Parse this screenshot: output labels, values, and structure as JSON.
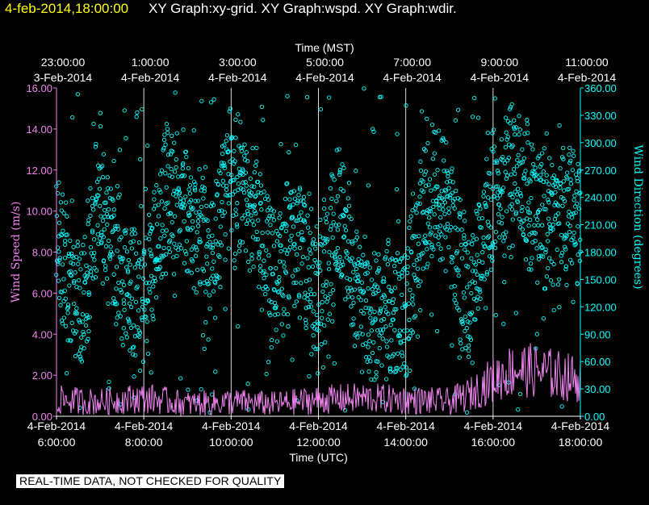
{
  "header": {
    "timestamp": "4-feb-2014,18:00:00",
    "graphs": "XY Graph:xy-grid.  XY Graph:wspd.  XY Graph:wdir."
  },
  "footer_note": "REAL-TIME DATA, NOT CHECKED FOR QUALITY",
  "colors": {
    "background": "#000000",
    "wind_speed": "#ee82ee",
    "wind_direction": "#00ffff",
    "grid": "#ffffff",
    "timestamp": "#ffff00"
  },
  "chart_data": {
    "type": "scatter",
    "title": "",
    "top_axis": {
      "label": "Time (MST)",
      "ticks": [
        {
          "time": "23:00:00",
          "date": "3-Feb-2014"
        },
        {
          "time": "1:00:00",
          "date": "4-Feb-2014"
        },
        {
          "time": "3:00:00",
          "date": "4-Feb-2014"
        },
        {
          "time": "5:00:00",
          "date": "4-Feb-2014"
        },
        {
          "time": "7:00:00",
          "date": "4-Feb-2014"
        },
        {
          "time": "9:00:00",
          "date": "4-Feb-2014"
        },
        {
          "time": "11:00:00",
          "date": "4-Feb-2014"
        }
      ]
    },
    "bottom_axis": {
      "label": "Time (UTC)",
      "ticks": [
        {
          "date": "4-Feb-2014",
          "time": "6:00:00"
        },
        {
          "date": "4-Feb-2014",
          "time": "8:00:00"
        },
        {
          "date": "4-Feb-2014",
          "time": "10:00:00"
        },
        {
          "date": "4-Feb-2014",
          "time": "12:00:00"
        },
        {
          "date": "4-Feb-2014",
          "time": "14:00:00"
        },
        {
          "date": "4-Feb-2014",
          "time": "16:00:00"
        },
        {
          "date": "4-Feb-2014",
          "time": "18:00:00"
        }
      ],
      "xlim_hours_utc": [
        6,
        18
      ]
    },
    "left_axis": {
      "label": "Wind Speed (m/s)",
      "ylim": [
        0,
        16
      ],
      "ticks": [
        "0.00",
        "2.00",
        "4.00",
        "6.00",
        "8.00",
        "10.00",
        "12.00",
        "14.00",
        "16.00"
      ]
    },
    "right_axis": {
      "label": "Wind Direction (degrees)",
      "ylim": [
        0,
        360
      ],
      "ticks": [
        "0.00",
        "30.00",
        "60.00",
        "90.00",
        "120.00",
        "150.00",
        "180.00",
        "210.00",
        "240.00",
        "270.00",
        "300.00",
        "330.00",
        "360.00"
      ]
    },
    "grid": "vertical lines at bottom-axis ticks",
    "series": [
      {
        "kind": "line",
        "axis": "left",
        "x": [
          6.0,
          7.0,
          8.0,
          9.0,
          10.0,
          11.0,
          12.0,
          13.0,
          14.0,
          15.0,
          15.5,
          16.0,
          16.5,
          17.0,
          17.5,
          18.0
        ],
        "y": [
          0.8,
          0.7,
          0.9,
          0.6,
          0.7,
          0.6,
          0.8,
          0.9,
          0.8,
          0.7,
          1.1,
          1.8,
          2.3,
          2.2,
          2.0,
          1.8
        ]
      },
      {
        "kind": "scatter",
        "axis": "right",
        "x": [
          6.0,
          6.5,
          7.0,
          7.5,
          8.0,
          8.5,
          9.0,
          9.5,
          10.0,
          10.5,
          11.0,
          11.5,
          12.0,
          12.5,
          13.0,
          13.5,
          14.0,
          14.5,
          15.0,
          15.5,
          16.0,
          16.5,
          17.0,
          17.5,
          18.0
        ],
        "y": [
          200,
          110,
          240,
          150,
          120,
          240,
          230,
          160,
          260,
          230,
          150,
          190,
          140,
          230,
          120,
          110,
          120,
          250,
          220,
          120,
          240,
          270,
          220,
          230,
          220
        ]
      }
    ]
  }
}
